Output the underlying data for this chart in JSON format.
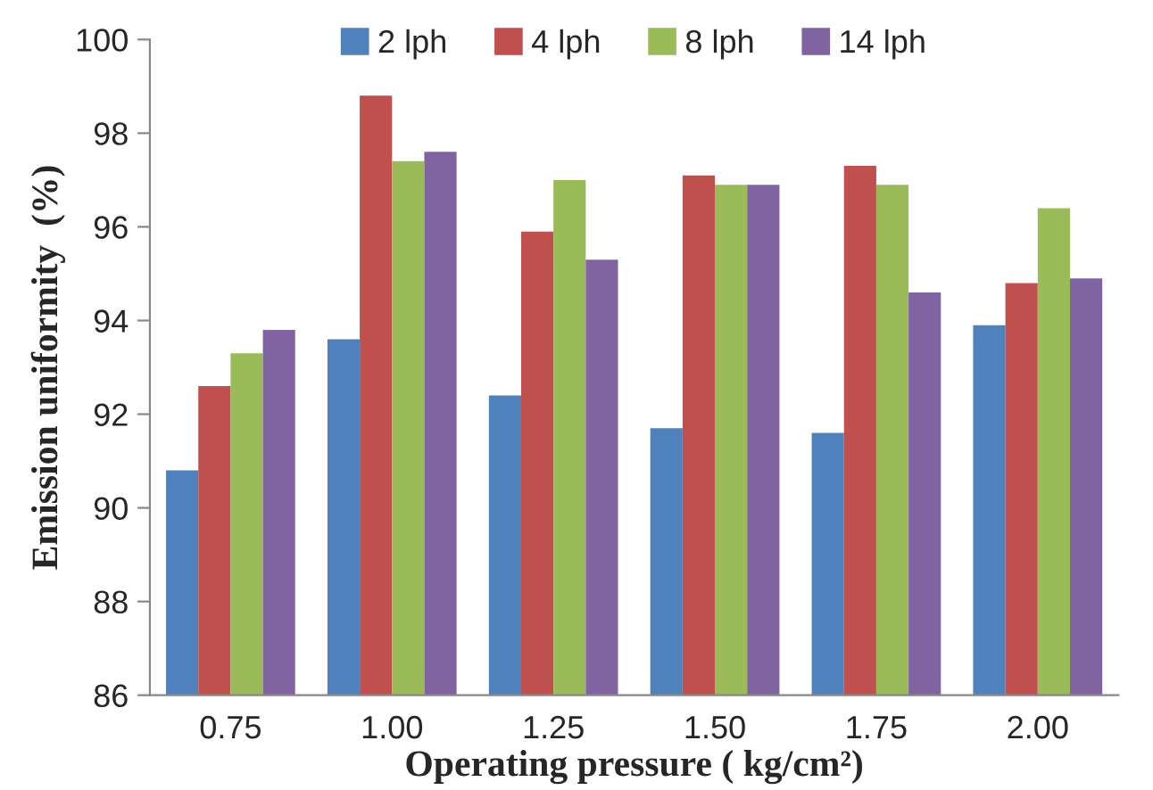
{
  "chart_data": {
    "type": "bar",
    "xlabel": "Operating pressure ( kg/cm²)",
    "ylabel": "Emission uniformity  (%)",
    "categories": [
      "0.75",
      "1.00",
      "1.25",
      "1.50",
      "1.75",
      "2.00"
    ],
    "series": [
      {
        "name": "2 lph",
        "color": "#4f81bd",
        "values": [
          90.8,
          93.6,
          92.4,
          91.7,
          91.6,
          93.9
        ]
      },
      {
        "name": "4 lph",
        "color": "#c0504d",
        "values": [
          92.6,
          98.8,
          95.9,
          97.1,
          97.3,
          94.8
        ]
      },
      {
        "name": "8 lph",
        "color": "#9bbb59",
        "values": [
          93.3,
          97.4,
          97.0,
          96.9,
          96.9,
          96.4
        ]
      },
      {
        "name": "14 lph",
        "color": "#8064a2",
        "values": [
          93.8,
          97.6,
          95.3,
          96.9,
          94.6,
          94.9
        ]
      }
    ],
    "ylim": [
      86,
      100
    ],
    "yticks": [
      86,
      88,
      90,
      92,
      94,
      96,
      98,
      100
    ],
    "grid": false,
    "legend": "top"
  }
}
